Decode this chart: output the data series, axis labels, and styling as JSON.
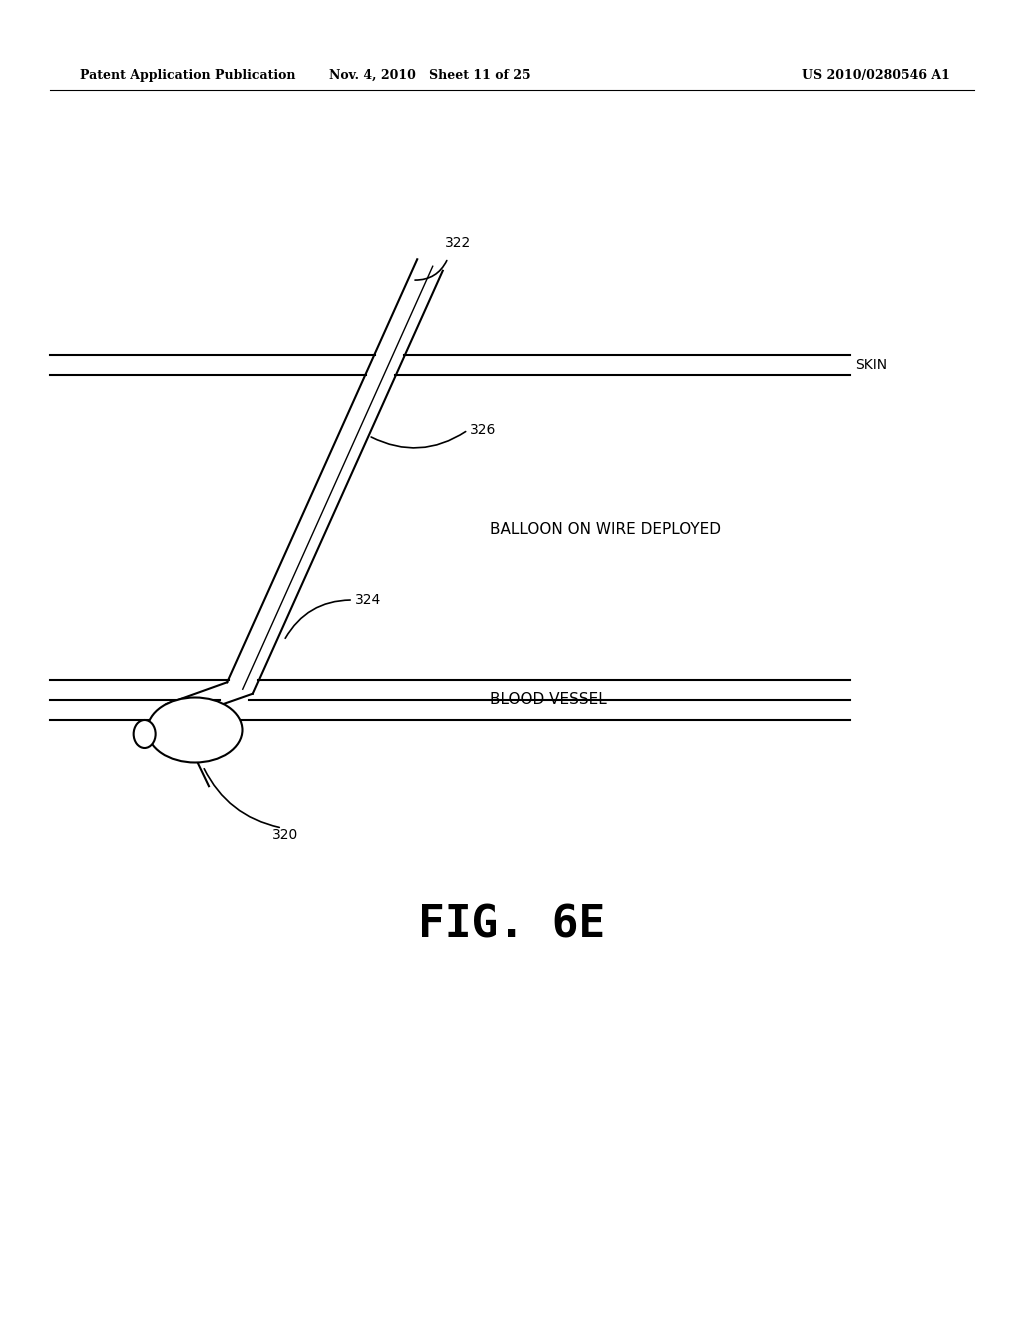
{
  "bg_color": "#ffffff",
  "header_left": "Patent Application Publication",
  "header_mid": "Nov. 4, 2010   Sheet 11 of 25",
  "header_right": "US 2010/0280546 A1",
  "fig_label": "FIG. 6E",
  "skin_label": "SKIN",
  "balloon_label": "BALLOON ON WIRE DEPLOYED",
  "vessel_label": "BLOOD VESSEL",
  "ref_322": "322",
  "ref_324": "324",
  "ref_326": "326",
  "ref_320": "320",
  "line_color": "#000000",
  "line_width": 1.5
}
